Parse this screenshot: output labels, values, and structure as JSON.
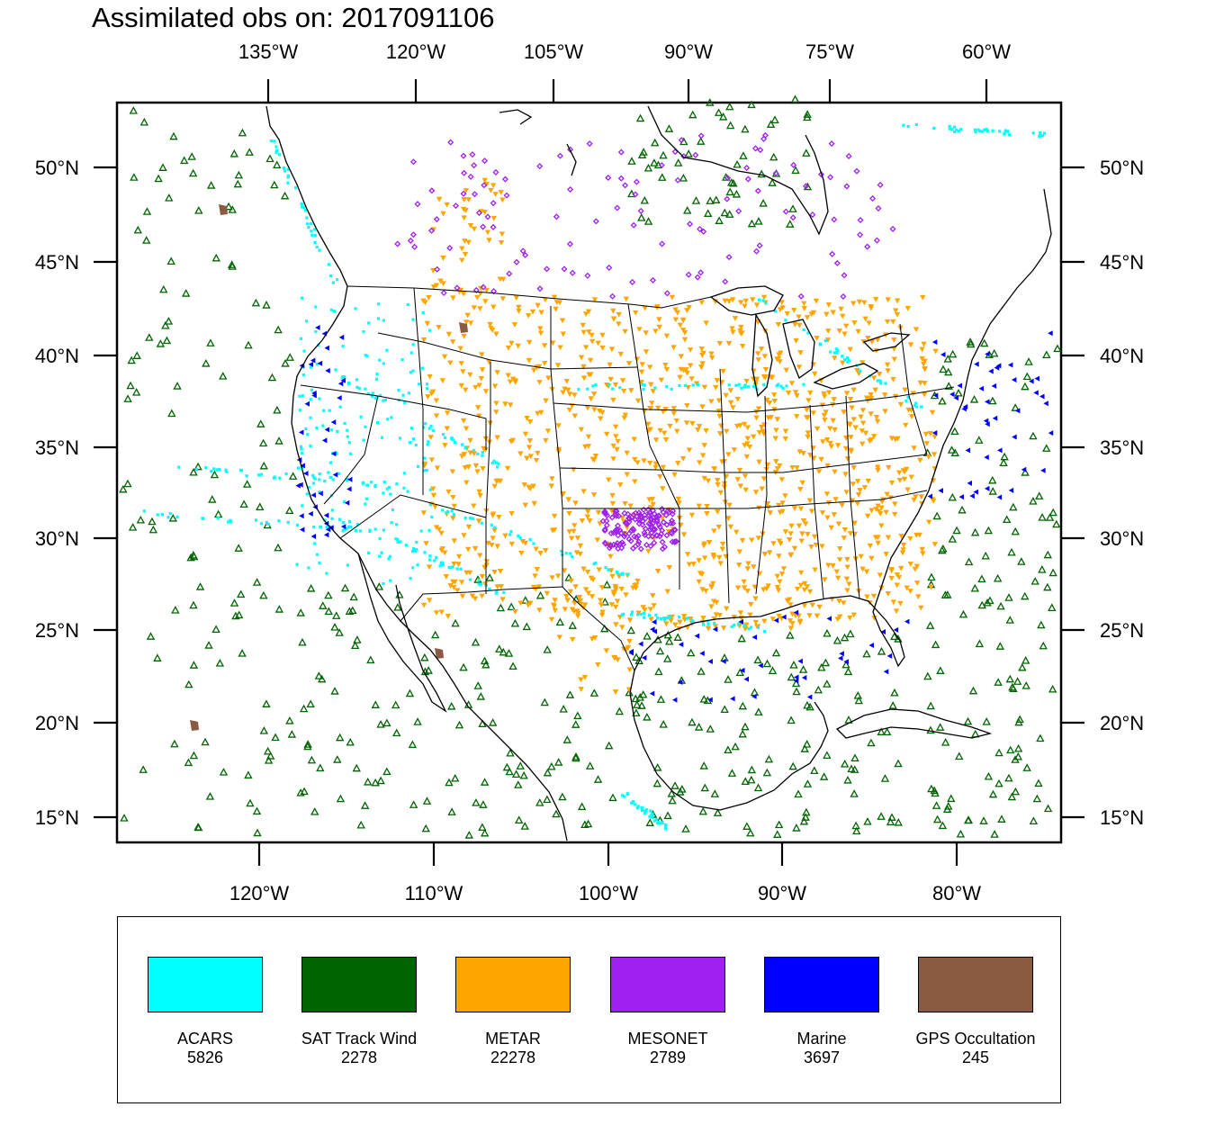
{
  "title": "Assimilated obs on: 2017091106",
  "map": {
    "top_lon_labels": [
      "135°W",
      "120°W",
      "105°W",
      "90°W",
      "75°W",
      "60°W"
    ],
    "bottom_lon_labels": [
      "120°W",
      "110°W",
      "100°W",
      "90°W",
      "80°W"
    ],
    "lat_labels": [
      "50°N",
      "45°N",
      "40°N",
      "35°N",
      "30°N",
      "25°N",
      "20°N",
      "15°N"
    ]
  },
  "legend": {
    "items": [
      {
        "name": "ACARS",
        "count": "5826",
        "color": "#00ffff"
      },
      {
        "name": "SAT Track Wind",
        "count": "2278",
        "color": "#006400"
      },
      {
        "name": "METAR",
        "count": "22278",
        "color": "#ffa500"
      },
      {
        "name": "MESONET",
        "count": "2789",
        "color": "#a020f0"
      },
      {
        "name": "Marine",
        "count": "3697",
        "color": "#0000ff"
      },
      {
        "name": "GPS Occultation",
        "count": "245",
        "color": "#8b5a43"
      }
    ]
  }
}
